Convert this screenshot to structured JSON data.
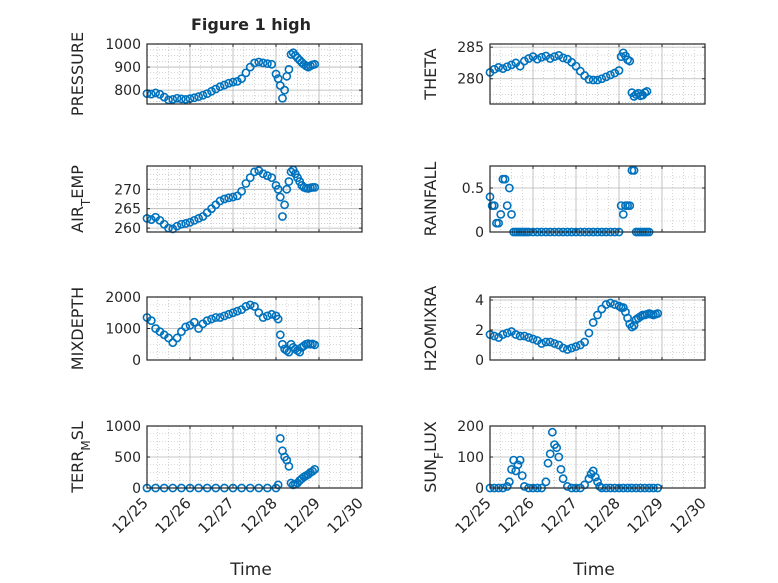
{
  "figure": {
    "title": "Figure 1 high",
    "marker_color": "#0072BD",
    "axis_color": "#262626",
    "grid_color": "#b4b4b4",
    "x_tick_labels": [
      "12/25",
      "12/26",
      "12/27",
      "12/28",
      "12/29",
      "12/30"
    ],
    "x_label": "Time"
  },
  "chart_data": [
    {
      "type": "scatter",
      "ylabel": "PRESSURE",
      "ylim": [
        740,
        1000
      ],
      "yticks": [
        800,
        900,
        1000
      ],
      "x_unit": "days since 12/25",
      "xlim": [
        0,
        5
      ],
      "x": [
        0,
        0.1,
        0.2,
        0.3,
        0.4,
        0.5,
        0.6,
        0.7,
        0.8,
        0.9,
        1.0,
        1.1,
        1.2,
        1.3,
        1.4,
        1.5,
        1.6,
        1.7,
        1.8,
        1.9,
        2.0,
        2.1,
        2.2,
        2.3,
        2.4,
        2.5,
        2.6,
        2.7,
        2.8,
        2.9,
        3.0,
        3.05,
        3.1,
        3.15,
        3.2,
        3.25,
        3.3,
        3.35,
        3.4,
        3.45,
        3.5,
        3.55,
        3.6,
        3.65,
        3.7,
        3.75,
        3.8,
        3.85,
        3.9
      ],
      "y": [
        785,
        783,
        788,
        782,
        770,
        758,
        760,
        765,
        762,
        760,
        763,
        767,
        772,
        778,
        785,
        795,
        805,
        815,
        822,
        830,
        835,
        838,
        850,
        875,
        900,
        918,
        922,
        918,
        915,
        912,
        870,
        850,
        820,
        765,
        800,
        860,
        890,
        955,
        962,
        950,
        940,
        930,
        920,
        912,
        905,
        900,
        905,
        910,
        912
      ]
    },
    {
      "type": "scatter",
      "ylabel": "THETA",
      "ylim": [
        276,
        285.5
      ],
      "yticks": [
        280,
        285
      ],
      "xlim": [
        0,
        5
      ],
      "x": [
        0,
        0.1,
        0.2,
        0.3,
        0.4,
        0.5,
        0.6,
        0.7,
        0.8,
        0.9,
        1.0,
        1.1,
        1.2,
        1.3,
        1.4,
        1.5,
        1.6,
        1.7,
        1.8,
        1.9,
        2.0,
        2.1,
        2.2,
        2.3,
        2.4,
        2.5,
        2.6,
        2.7,
        2.8,
        2.9,
        3.0,
        3.05,
        3.1,
        3.15,
        3.2,
        3.25,
        3.3,
        3.35,
        3.4,
        3.45,
        3.5,
        3.55,
        3.6,
        3.65
      ],
      "y": [
        281,
        281.5,
        281.8,
        281.6,
        281.9,
        282.2,
        282.5,
        282,
        282.8,
        283.2,
        283.5,
        283.1,
        283.4,
        283.6,
        283.2,
        283.5,
        283.7,
        283.3,
        283.1,
        282.6,
        282,
        281.2,
        280.5,
        279.9,
        279.8,
        279.8,
        280,
        280.3,
        280.6,
        280.9,
        281.3,
        283.5,
        284.1,
        283.6,
        283,
        282.8,
        277.8,
        277.2,
        277.5,
        277.7,
        277.3,
        277.4,
        277.8,
        278
      ]
    },
    {
      "type": "scatter",
      "ylabel": "AIR_TEMP",
      "ylim": [
        259,
        276
      ],
      "yticks": [
        260,
        265,
        270
      ],
      "xlim": [
        0,
        5
      ],
      "x": [
        0,
        0.1,
        0.2,
        0.3,
        0.4,
        0.5,
        0.6,
        0.7,
        0.8,
        0.9,
        1.0,
        1.1,
        1.2,
        1.3,
        1.4,
        1.5,
        1.6,
        1.7,
        1.8,
        1.9,
        2.0,
        2.1,
        2.2,
        2.3,
        2.4,
        2.5,
        2.6,
        2.7,
        2.8,
        2.9,
        3.0,
        3.05,
        3.1,
        3.15,
        3.2,
        3.25,
        3.3,
        3.35,
        3.4,
        3.45,
        3.5,
        3.55,
        3.6,
        3.65,
        3.7,
        3.75,
        3.8,
        3.85,
        3.9
      ],
      "y": [
        262.5,
        262.2,
        262.8,
        262,
        261,
        260,
        259.8,
        260.5,
        261,
        261.2,
        261.5,
        262,
        262.5,
        263,
        264,
        265,
        266,
        267,
        267.5,
        267.8,
        268,
        268.3,
        269.5,
        271.5,
        273,
        274.5,
        274.8,
        274,
        273.5,
        273,
        271,
        270,
        268,
        263,
        266,
        270,
        272,
        274.5,
        275,
        274,
        273,
        272,
        271,
        270.5,
        270.3,
        270.2,
        270.4,
        270.5,
        270.5
      ]
    },
    {
      "type": "scatter",
      "ylabel": "RAINFALL",
      "ylim": [
        0,
        0.75
      ],
      "yticks": [
        0,
        0.5
      ],
      "xlim": [
        0,
        5
      ],
      "x": [
        0,
        0.05,
        0.1,
        0.15,
        0.2,
        0.25,
        0.3,
        0.35,
        0.4,
        0.45,
        0.5,
        0.55,
        0.6,
        0.65,
        0.7,
        0.75,
        0.8,
        0.85,
        0.9,
        1.0,
        1.1,
        1.2,
        1.3,
        1.4,
        1.5,
        1.6,
        1.7,
        1.8,
        1.9,
        2.0,
        2.1,
        2.2,
        2.3,
        2.4,
        2.5,
        2.6,
        2.7,
        2.8,
        2.9,
        3.0,
        3.05,
        3.1,
        3.15,
        3.2,
        3.25,
        3.3,
        3.35,
        3.4,
        3.45,
        3.5,
        3.55,
        3.6,
        3.65,
        3.7
      ],
      "y": [
        0.4,
        0.3,
        0.3,
        0.1,
        0.1,
        0.2,
        0.6,
        0.6,
        0.3,
        0.5,
        0.2,
        0,
        0,
        0,
        0,
        0,
        0,
        0,
        0,
        0,
        0,
        0,
        0,
        0,
        0,
        0,
        0,
        0,
        0,
        0,
        0,
        0,
        0,
        0,
        0,
        0,
        0,
        0,
        0,
        0,
        0.3,
        0.2,
        0.3,
        0.3,
        0.3,
        0.7,
        0.7,
        0,
        0,
        0,
        0,
        0,
        0,
        0
      ]
    },
    {
      "type": "scatter",
      "ylabel": "MIXDEPTH",
      "ylim": [
        0,
        2000
      ],
      "yticks": [
        0,
        1000,
        2000
      ],
      "xlim": [
        0,
        5
      ],
      "x": [
        0,
        0.1,
        0.2,
        0.3,
        0.4,
        0.5,
        0.6,
        0.7,
        0.8,
        0.9,
        1.0,
        1.1,
        1.2,
        1.3,
        1.4,
        1.5,
        1.6,
        1.7,
        1.8,
        1.9,
        2.0,
        2.1,
        2.2,
        2.3,
        2.4,
        2.5,
        2.6,
        2.7,
        2.8,
        2.9,
        3.0,
        3.05,
        3.1,
        3.15,
        3.2,
        3.25,
        3.3,
        3.35,
        3.4,
        3.45,
        3.5,
        3.55,
        3.6,
        3.65,
        3.7,
        3.75,
        3.8,
        3.85,
        3.9
      ],
      "y": [
        1350,
        1250,
        1000,
        900,
        800,
        700,
        550,
        700,
        900,
        1050,
        1100,
        1200,
        1000,
        1150,
        1250,
        1300,
        1350,
        1350,
        1400,
        1450,
        1500,
        1550,
        1600,
        1700,
        1750,
        1700,
        1500,
        1350,
        1400,
        1450,
        1400,
        1300,
        800,
        500,
        350,
        300,
        250,
        500,
        400,
        350,
        300,
        250,
        400,
        450,
        500,
        520,
        500,
        510,
        480
      ]
    },
    {
      "type": "scatter",
      "ylabel": "H2OMIXRA",
      "ylim": [
        0,
        4.2
      ],
      "yticks": [
        0,
        2,
        4
      ],
      "xlim": [
        0,
        5
      ],
      "x": [
        0,
        0.1,
        0.2,
        0.3,
        0.4,
        0.5,
        0.6,
        0.7,
        0.8,
        0.9,
        1.0,
        1.1,
        1.2,
        1.3,
        1.4,
        1.5,
        1.6,
        1.7,
        1.8,
        1.9,
        2.0,
        2.1,
        2.2,
        2.3,
        2.4,
        2.5,
        2.6,
        2.7,
        2.8,
        2.9,
        3.0,
        3.05,
        3.1,
        3.15,
        3.2,
        3.25,
        3.3,
        3.35,
        3.4,
        3.45,
        3.5,
        3.55,
        3.6,
        3.65,
        3.7,
        3.75,
        3.8,
        3.85,
        3.9
      ],
      "y": [
        1.7,
        1.6,
        1.5,
        1.7,
        1.8,
        1.9,
        1.7,
        1.6,
        1.6,
        1.5,
        1.4,
        1.3,
        1.1,
        1.2,
        1.2,
        1.1,
        1.0,
        0.8,
        0.7,
        0.8,
        0.9,
        1.0,
        1.2,
        1.8,
        2.5,
        3.0,
        3.4,
        3.7,
        3.8,
        3.7,
        3.6,
        3.5,
        3.5,
        3.2,
        2.8,
        2.4,
        2.2,
        2.3,
        2.7,
        2.8,
        2.9,
        3.0,
        3.0,
        3.05,
        3.1,
        3.05,
        3.0,
        3.05,
        3.1
      ]
    },
    {
      "type": "scatter",
      "ylabel": "TERR_MSL",
      "ylim": [
        0,
        1000
      ],
      "yticks": [
        0,
        500,
        1000
      ],
      "xlim": [
        0,
        5
      ],
      "x": [
        0,
        0.2,
        0.4,
        0.6,
        0.8,
        1.0,
        1.2,
        1.4,
        1.6,
        1.8,
        2.0,
        2.2,
        2.4,
        2.6,
        2.8,
        3.0,
        3.05,
        3.1,
        3.15,
        3.2,
        3.25,
        3.3,
        3.35,
        3.4,
        3.45,
        3.5,
        3.55,
        3.6,
        3.65,
        3.7,
        3.75,
        3.8,
        3.85,
        3.9
      ],
      "y": [
        0,
        0,
        0,
        0,
        0,
        0,
        0,
        0,
        0,
        0,
        0,
        0,
        0,
        0,
        0,
        0,
        50,
        800,
        600,
        500,
        450,
        350,
        80,
        50,
        60,
        80,
        120,
        150,
        180,
        200,
        220,
        250,
        270,
        300
      ]
    },
    {
      "type": "scatter",
      "ylabel": "SUN_FLUX",
      "ylim": [
        0,
        200
      ],
      "yticks": [
        0,
        100,
        200
      ],
      "xlim": [
        0,
        5
      ],
      "x": [
        0,
        0.1,
        0.2,
        0.3,
        0.4,
        0.45,
        0.5,
        0.55,
        0.6,
        0.65,
        0.7,
        0.75,
        0.8,
        0.9,
        1.0,
        1.1,
        1.2,
        1.3,
        1.35,
        1.4,
        1.45,
        1.5,
        1.55,
        1.6,
        1.65,
        1.7,
        1.8,
        1.9,
        2.0,
        2.1,
        2.2,
        2.3,
        2.35,
        2.4,
        2.45,
        2.5,
        2.55,
        2.6,
        2.7,
        2.8,
        2.9,
        3.0,
        3.1,
        3.2,
        3.3,
        3.4,
        3.5,
        3.6,
        3.7,
        3.8,
        3.9
      ],
      "y": [
        0,
        0,
        0,
        0,
        5,
        20,
        60,
        90,
        55,
        75,
        90,
        40,
        5,
        0,
        0,
        0,
        0,
        20,
        80,
        110,
        180,
        140,
        130,
        100,
        60,
        30,
        5,
        0,
        0,
        0,
        10,
        30,
        45,
        55,
        35,
        20,
        5,
        0,
        0,
        0,
        0,
        0,
        0,
        0,
        0,
        0,
        0,
        0,
        0,
        0,
        0
      ]
    }
  ]
}
